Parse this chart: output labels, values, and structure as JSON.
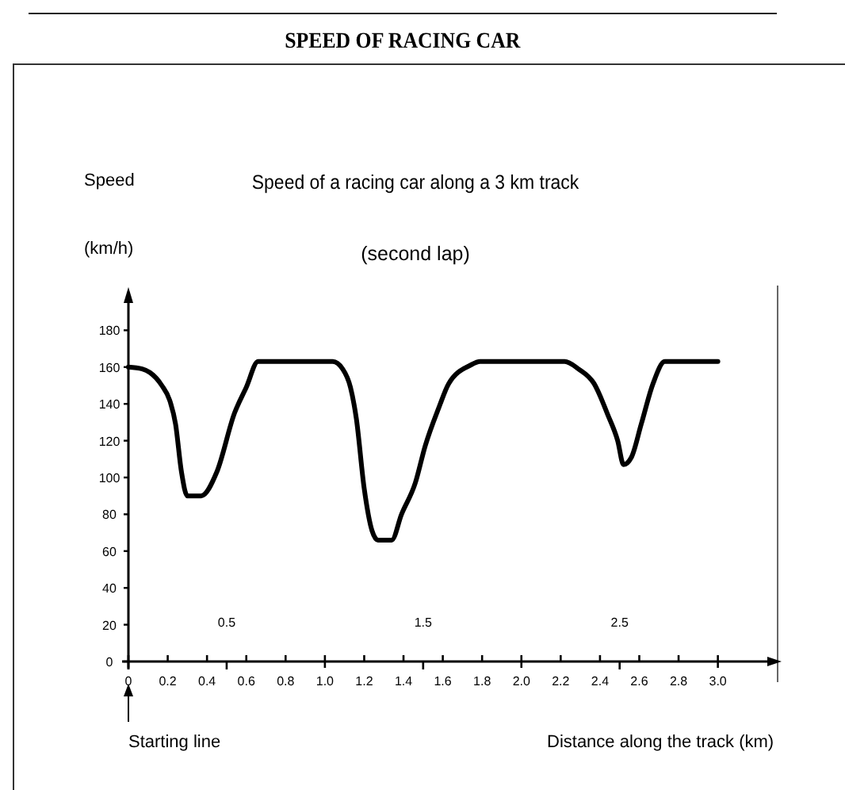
{
  "chart_data": {
    "type": "line",
    "title": "SPEED OF RACING CAR",
    "subtitle": "Speed of a racing car along a 3 km track",
    "xlabel": "Distance along the track (km)",
    "ylabel": "Speed (km/h)",
    "annotations": [
      "(second lap)",
      "Starting line"
    ],
    "x": [
      0,
      0.07,
      0.11,
      0.17,
      0.21,
      0.24,
      0.27,
      0.3,
      0.37,
      0.45,
      0.54,
      0.6,
      0.66,
      1.04,
      1.09,
      1.13,
      1.16,
      1.2,
      1.24,
      1.27,
      1.34,
      1.39,
      1.46,
      1.51,
      1.58,
      1.63,
      1.74,
      1.79,
      2.22,
      2.29,
      2.37,
      2.44,
      2.49,
      2.52,
      2.56,
      2.61,
      2.67,
      2.73,
      3.0
    ],
    "series": [
      {
        "color": "#000000",
        "values": [
          160,
          159,
          157,
          150,
          142,
          129,
          103,
          90,
          90,
          103,
          135,
          149,
          163,
          163,
          159,
          149,
          132,
          94,
          71,
          66,
          66,
          80,
          97,
          117,
          138,
          151,
          161,
          163,
          163,
          159,
          151,
          134,
          120,
          107,
          111,
          129,
          151,
          163,
          163
        ]
      }
    ],
    "xlim": [
      0,
      3.3
    ],
    "ylim": [
      0,
      200
    ],
    "xticks": [
      0,
      0.2,
      0.4,
      0.6,
      0.8,
      {
        "value": 1,
        "label": "1.0"
      },
      1.2,
      1.4,
      1.6,
      1.8,
      {
        "value": 2,
        "label": "2.0"
      },
      2.2,
      2.4,
      2.6,
      2.8,
      {
        "value": 3,
        "label": "3.0"
      }
    ],
    "x2lim": [
      0,
      3.3
    ],
    "x2ticks": [
      0.5,
      1.5,
      2.5
    ],
    "yticks": [
      0,
      20,
      40,
      60,
      80,
      100,
      120,
      140,
      160,
      180
    ],
    "marker": "none",
    "line_style": "solid"
  }
}
